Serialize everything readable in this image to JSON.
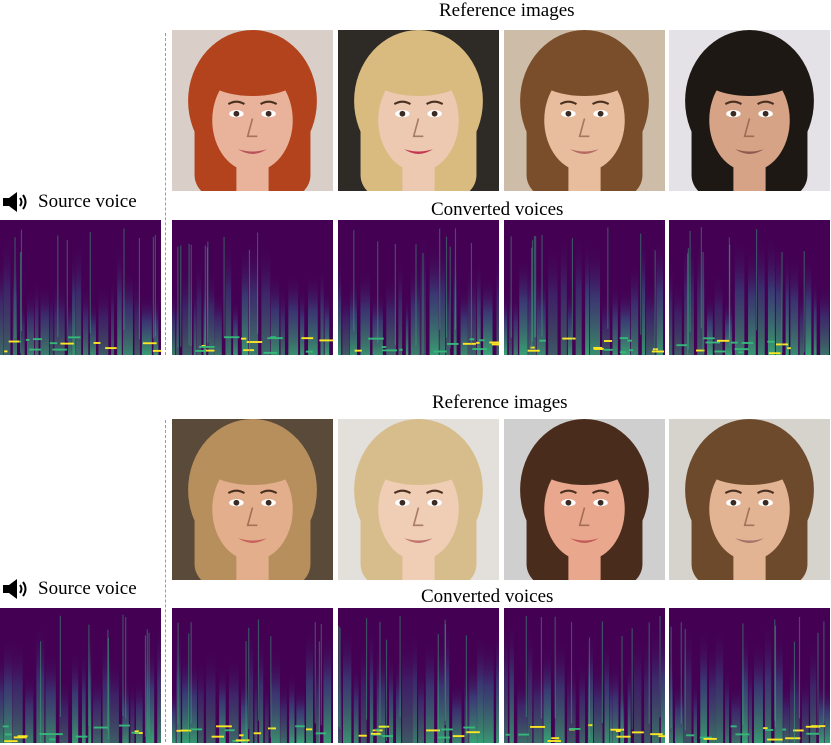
{
  "groups": [
    {
      "reference_title": "Reference images",
      "converted_title": "Converted voices",
      "source_label": "Source voice",
      "faces": [
        {
          "bg": "#d9cfc8",
          "hair": "#b2431c",
          "skin": "#e8b39a",
          "lips": "#b9545a"
        },
        {
          "bg": "#2e2a26",
          "hair": "#d9bb80",
          "skin": "#edc9b2",
          "lips": "#c2374f"
        },
        {
          "bg": "#cdbda8",
          "hair": "#7a4e2a",
          "skin": "#e7bd9e",
          "lips": "#b56b62"
        },
        {
          "bg": "#e4e2e6",
          "hair": "#1e1814",
          "skin": "#d7a386",
          "lips": "#8e5a4e"
        }
      ]
    },
    {
      "reference_title": "Reference images",
      "converted_title": "Converted voices",
      "source_label": "Source voice",
      "faces": [
        {
          "bg": "#5a4a3a",
          "hair": "#b78f5c",
          "skin": "#e3ae8c",
          "lips": "#c8625e"
        },
        {
          "bg": "#e3e0dc",
          "hair": "#d8bd8c",
          "skin": "#f0cdb5",
          "lips": "#c07470"
        },
        {
          "bg": "#cfcfcf",
          "hair": "#4a2c1c",
          "skin": "#e9a88e",
          "lips": "#c25b5a"
        },
        {
          "bg": "#d6d2cc",
          "hair": "#6e4a2c",
          "skin": "#e2b494",
          "lips": "#a8706a"
        }
      ]
    }
  ],
  "icons": {
    "speaker": "speaker-icon"
  },
  "colors": {
    "spectrogram_bg": "#440154",
    "spectrogram_mid": "#31688e",
    "spectrogram_high": "#35b779",
    "spectrogram_peak": "#fde725"
  }
}
